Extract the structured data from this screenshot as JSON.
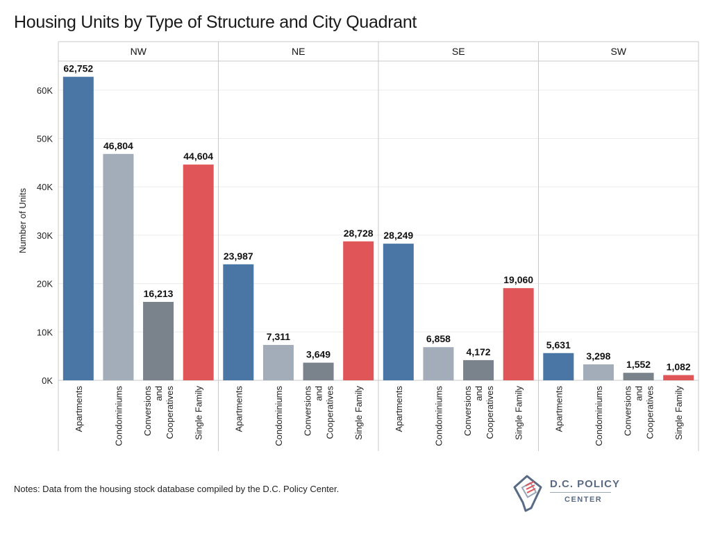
{
  "chart_data": {
    "type": "bar",
    "title": "Housing Units by Type of Structure and City Quadrant",
    "ylabel": "Number of Units",
    "ylim": [
      0,
      66000
    ],
    "y_ticks": [
      {
        "value": 0,
        "label": "0K"
      },
      {
        "value": 10000,
        "label": "10K"
      },
      {
        "value": 20000,
        "label": "20K"
      },
      {
        "value": 30000,
        "label": "30K"
      },
      {
        "value": 40000,
        "label": "40K"
      },
      {
        "value": 50000,
        "label": "50K"
      },
      {
        "value": 60000,
        "label": "60K"
      }
    ],
    "grid": true,
    "categories": [
      {
        "label_lines": [
          "Apartments"
        ],
        "color": "#4a76a5"
      },
      {
        "label_lines": [
          "Condominiums"
        ],
        "color": "#a3adb9"
      },
      {
        "label_lines": [
          "Conversions",
          "and",
          "Cooperatives"
        ],
        "color": "#7a828c"
      },
      {
        "label_lines": [
          "Single Family"
        ],
        "color": "#e05558"
      }
    ],
    "panels": [
      {
        "name": "NW",
        "values": [
          62752,
          46804,
          16213,
          44604
        ],
        "labels": [
          "62,752",
          "46,804",
          "16,213",
          "44,604"
        ]
      },
      {
        "name": "NE",
        "values": [
          23987,
          7311,
          3649,
          28728
        ],
        "labels": [
          "23,987",
          "7,311",
          "3,649",
          "28,728"
        ]
      },
      {
        "name": "SE",
        "values": [
          28249,
          6858,
          4172,
          19060
        ],
        "labels": [
          "28,249",
          "6,858",
          "4,172",
          "19,060"
        ]
      },
      {
        "name": "SW",
        "values": [
          5631,
          3298,
          1552,
          1082
        ],
        "labels": [
          "5,631",
          "3,298",
          "1,552",
          "1,082"
        ]
      }
    ]
  },
  "notes": "Notes: Data from the housing stock database compiled by the D.C. Policy Center.",
  "logo": {
    "line1": "D.C. POLICY",
    "line2": "CENTER"
  }
}
